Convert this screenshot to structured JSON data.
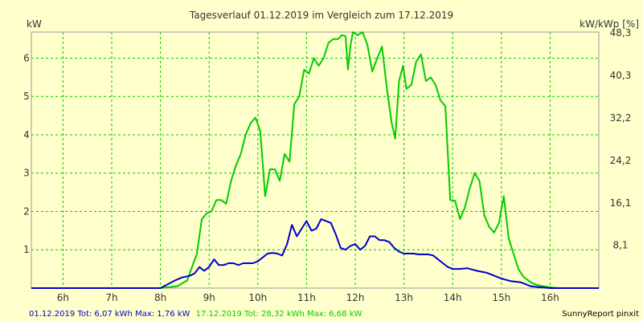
{
  "chart_data": {
    "type": "line",
    "title": "Tagesverlauf 01.12.2019 im Vergleich zum 17.12.2019",
    "ylabel": "kW",
    "y2label": "kW/kWp [%]",
    "xlim": [
      5.35,
      17.0
    ],
    "ylim": [
      0,
      6.68
    ],
    "x_ticks": [
      {
        "value": 6,
        "label": "6h"
      },
      {
        "value": 7,
        "label": "7h"
      },
      {
        "value": 8,
        "label": "8h"
      },
      {
        "value": 9,
        "label": "9h"
      },
      {
        "value": 10,
        "label": "10h"
      },
      {
        "value": 11,
        "label": "11h"
      },
      {
        "value": 12,
        "label": "12h"
      },
      {
        "value": 13,
        "label": "13h"
      },
      {
        "value": 14,
        "label": "14h"
      },
      {
        "value": 15,
        "label": "15h"
      },
      {
        "value": 16,
        "label": "16h"
      }
    ],
    "y_ticks": [
      {
        "value": 1,
        "label": "1"
      },
      {
        "value": 2,
        "label": "2"
      },
      {
        "value": 3,
        "label": "3"
      },
      {
        "value": 4,
        "label": "4"
      },
      {
        "value": 5,
        "label": "5"
      },
      {
        "value": 6,
        "label": "6"
      }
    ],
    "y2_ticks": [
      {
        "value": 1.12,
        "label": "8,1"
      },
      {
        "value": 2.22,
        "label": "16,1"
      },
      {
        "value": 3.33,
        "label": "24,2"
      },
      {
        "value": 4.44,
        "label": "32,2"
      },
      {
        "value": 5.55,
        "label": "40,3"
      },
      {
        "value": 6.66,
        "label": "48,3"
      }
    ],
    "grid": true,
    "series": [
      {
        "color": "#00cc00",
        "x": [
          5.35,
          7.25,
          8.0,
          8.35,
          8.55,
          8.75,
          8.85,
          8.95,
          9.05,
          9.15,
          9.25,
          9.35,
          9.45,
          9.55,
          9.65,
          9.75,
          9.85,
          9.95,
          10.05,
          10.15,
          10.25,
          10.35,
          10.45,
          10.55,
          10.65,
          10.75,
          10.85,
          10.95,
          11.05,
          11.15,
          11.25,
          11.35,
          11.45,
          11.55,
          11.65,
          11.72,
          11.8,
          11.85,
          11.9,
          11.95,
          12.05,
          12.15,
          12.25,
          12.35,
          12.45,
          12.55,
          12.65,
          12.75,
          12.82,
          12.9,
          12.98,
          13.05,
          13.15,
          13.25,
          13.35,
          13.45,
          13.55,
          13.65,
          13.75,
          13.85,
          13.95,
          14.05,
          14.15,
          14.25,
          14.35,
          14.45,
          14.55,
          14.65,
          14.75,
          14.85,
          14.95,
          15.05,
          15.15,
          15.25,
          15.35,
          15.45,
          15.55,
          15.65,
          15.75,
          15.85,
          16.0,
          16.15,
          17.0
        ],
        "values": [
          0,
          0,
          0,
          0.05,
          0.2,
          0.9,
          1.8,
          1.95,
          2.0,
          2.3,
          2.3,
          2.2,
          2.8,
          3.2,
          3.5,
          4.0,
          4.3,
          4.45,
          4.1,
          2.4,
          3.1,
          3.1,
          2.8,
          3.5,
          3.3,
          4.8,
          5.0,
          5.7,
          5.6,
          6.0,
          5.8,
          6.0,
          6.4,
          6.5,
          6.5,
          6.6,
          6.58,
          5.7,
          6.3,
          6.68,
          6.6,
          6.68,
          6.35,
          5.65,
          6.0,
          6.3,
          5.2,
          4.3,
          3.9,
          5.4,
          5.8,
          5.2,
          5.3,
          5.9,
          6.1,
          5.4,
          5.5,
          5.3,
          4.9,
          4.75,
          2.3,
          2.28,
          1.8,
          2.1,
          2.6,
          3.0,
          2.8,
          1.9,
          1.6,
          1.45,
          1.7,
          2.4,
          1.3,
          0.9,
          0.5,
          0.3,
          0.2,
          0.12,
          0.08,
          0.05,
          0.02,
          0,
          0
        ]
      },
      {
        "color": "#0000cc",
        "x": [
          5.35,
          8.0,
          8.15,
          8.3,
          8.45,
          8.6,
          8.7,
          8.8,
          8.9,
          9.0,
          9.1,
          9.2,
          9.3,
          9.4,
          9.5,
          9.6,
          9.7,
          9.8,
          9.9,
          10.0,
          10.1,
          10.2,
          10.3,
          10.4,
          10.5,
          10.6,
          10.7,
          10.8,
          10.9,
          11.0,
          11.1,
          11.2,
          11.3,
          11.4,
          11.5,
          11.6,
          11.7,
          11.8,
          11.9,
          12.0,
          12.1,
          12.2,
          12.3,
          12.4,
          12.5,
          12.6,
          12.7,
          12.8,
          12.9,
          13.0,
          13.1,
          13.2,
          13.3,
          13.4,
          13.5,
          13.6,
          13.7,
          13.8,
          13.9,
          14.0,
          14.15,
          14.3,
          14.5,
          14.7,
          14.9,
          15.0,
          15.2,
          15.4,
          15.6,
          15.8,
          16.0,
          17.0
        ],
        "values": [
          0,
          0,
          0.1,
          0.2,
          0.28,
          0.32,
          0.38,
          0.55,
          0.45,
          0.55,
          0.75,
          0.6,
          0.6,
          0.65,
          0.65,
          0.6,
          0.65,
          0.65,
          0.65,
          0.7,
          0.8,
          0.9,
          0.92,
          0.9,
          0.85,
          1.15,
          1.65,
          1.35,
          1.55,
          1.75,
          1.5,
          1.55,
          1.8,
          1.75,
          1.7,
          1.4,
          1.05,
          1.0,
          1.1,
          1.15,
          1.0,
          1.1,
          1.35,
          1.35,
          1.25,
          1.25,
          1.2,
          1.05,
          0.95,
          0.9,
          0.9,
          0.9,
          0.88,
          0.88,
          0.88,
          0.85,
          0.75,
          0.65,
          0.55,
          0.5,
          0.5,
          0.52,
          0.45,
          0.4,
          0.3,
          0.25,
          0.18,
          0.15,
          0.05,
          0.02,
          0,
          0
        ]
      }
    ]
  },
  "footer": {
    "blue_text": "01.12.2019 Tot: 6,07 kWh Max: 1,76 kW",
    "green_text": "17.12.2019 Tot: 28,32 kWh Max: 6,68 kW",
    "credit": "SunnyReport pinxit"
  }
}
